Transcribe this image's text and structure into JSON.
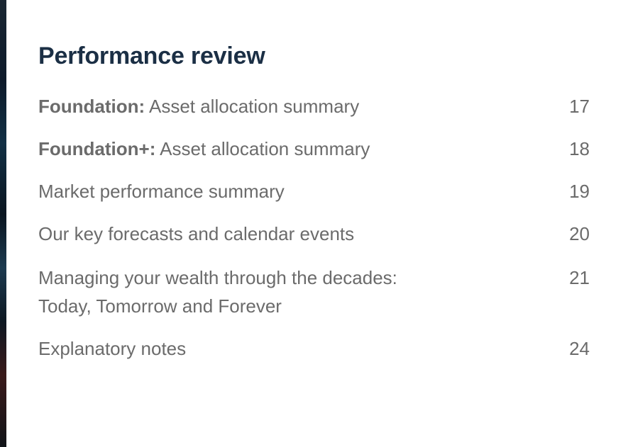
{
  "section": {
    "title": "Performance review"
  },
  "toc": [
    {
      "bold": "Foundation:",
      "text": " Asset allocation summary",
      "page": "17"
    },
    {
      "bold": "Foundation+:",
      "text": " Asset allocation summary",
      "page": "18"
    },
    {
      "bold": "",
      "text": "Market performance summary",
      "page": "19"
    },
    {
      "bold": "",
      "text": "Our key forecasts and calendar events",
      "page": "20"
    },
    {
      "bold": "",
      "text": "Managing your wealth through the decades:",
      "text2": "Today, Tomorrow and Forever",
      "page": "21"
    },
    {
      "bold": "",
      "text": "Explanatory notes",
      "page": "24"
    }
  ]
}
